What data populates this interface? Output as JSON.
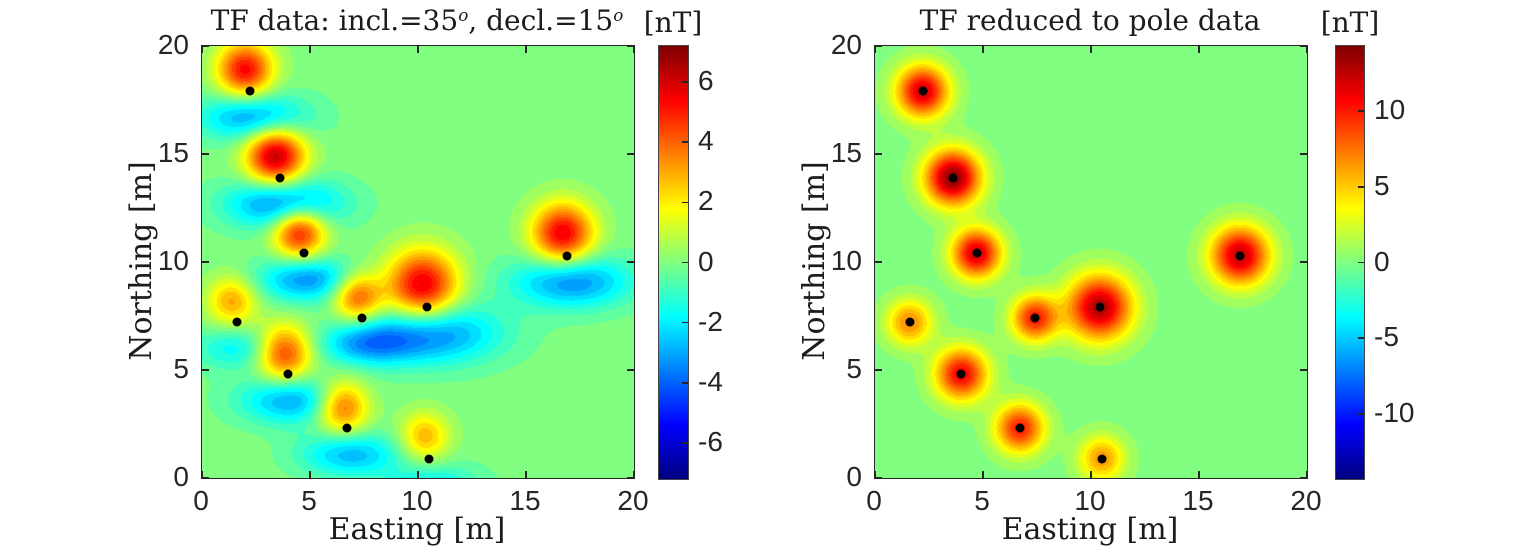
{
  "chart_data": [
    {
      "type": "heatmap",
      "title": {
        "pre": "TF data: incl.=35",
        "sup1": "o",
        "mid": ", decl.=15",
        "sup2": "o"
      },
      "xlabel": "Easting [m]",
      "ylabel": "Northing [m]",
      "xlim": [
        0,
        20
      ],
      "ylim": [
        0,
        20
      ],
      "xticks": [
        0,
        5,
        10,
        15,
        20
      ],
      "yticks": [
        0,
        5,
        10,
        15,
        20
      ],
      "colormap": "jet",
      "grid": false,
      "levels_step": 0.45,
      "marker": "black-dot",
      "colorbar": {
        "label": "[nT]",
        "ticks": [
          6,
          4,
          2,
          0,
          -2,
          -4,
          -6
        ],
        "clim": [
          -7.2,
          7.2
        ]
      },
      "anomaly_model": {
        "kind": "dipolar-total-field",
        "pos_offset": [
          -0.2,
          1.0
        ],
        "neg_offset": [
          0.2,
          -1.2
        ],
        "neg_sigma_scale": [
          1.9,
          0.85
        ],
        "neg_amp_ratio": 0.62
      },
      "points": [
        {
          "x": 2.2,
          "y": 17.9,
          "amp": 5.4,
          "sigma": 0.9
        },
        {
          "x": 3.6,
          "y": 13.9,
          "amp": 6.4,
          "sigma": 0.95
        },
        {
          "x": 4.7,
          "y": 10.4,
          "amp": 5.4,
          "sigma": 0.85
        },
        {
          "x": 1.6,
          "y": 7.2,
          "amp": 3.1,
          "sigma": 0.8
        },
        {
          "x": 4.0,
          "y": 4.8,
          "amp": 5.0,
          "sigma": 0.9
        },
        {
          "x": 7.4,
          "y": 7.4,
          "amp": 4.4,
          "sigma": 0.8
        },
        {
          "x": 10.4,
          "y": 7.9,
          "amp": 5.9,
          "sigma": 1.15
        },
        {
          "x": 6.7,
          "y": 2.3,
          "amp": 4.5,
          "sigma": 0.85
        },
        {
          "x": 10.5,
          "y": 0.9,
          "amp": 2.9,
          "sigma": 0.8
        },
        {
          "x": 16.9,
          "y": 10.3,
          "amp": 5.7,
          "sigma": 1.0
        }
      ]
    },
    {
      "type": "heatmap",
      "title": {
        "pre": "TF reduced to pole data"
      },
      "xlabel": "Easting [m]",
      "ylabel": "Northing [m]",
      "xlim": [
        0,
        20
      ],
      "ylim": [
        0,
        20
      ],
      "xticks": [
        0,
        5,
        10,
        15,
        20
      ],
      "yticks": [
        0,
        5,
        10,
        15,
        20
      ],
      "colormap": "jet",
      "grid": false,
      "levels_step": 0.9,
      "marker": "black-dot",
      "colorbar": {
        "label": "[nT]",
        "ticks": [
          10,
          5,
          0,
          -5,
          -10
        ],
        "clim": [
          -14.3,
          14.3
        ]
      },
      "anomaly_model": {
        "kind": "monopole-rtp",
        "pos_offset": [
          0,
          0
        ]
      },
      "points": [
        {
          "x": 2.2,
          "y": 17.9,
          "amp": 12.0,
          "sigma": 0.85
        },
        {
          "x": 3.6,
          "y": 13.9,
          "amp": 14.0,
          "sigma": 0.9
        },
        {
          "x": 4.7,
          "y": 10.4,
          "amp": 12.0,
          "sigma": 0.8
        },
        {
          "x": 1.6,
          "y": 7.2,
          "amp": 7.0,
          "sigma": 0.75
        },
        {
          "x": 4.0,
          "y": 4.8,
          "amp": 11.0,
          "sigma": 0.85
        },
        {
          "x": 7.4,
          "y": 7.4,
          "amp": 10.0,
          "sigma": 0.75
        },
        {
          "x": 10.4,
          "y": 7.9,
          "amp": 13.0,
          "sigma": 1.05
        },
        {
          "x": 6.7,
          "y": 2.3,
          "amp": 10.0,
          "sigma": 0.8
        },
        {
          "x": 10.5,
          "y": 0.9,
          "amp": 6.5,
          "sigma": 0.75
        },
        {
          "x": 16.9,
          "y": 10.3,
          "amp": 12.5,
          "sigma": 0.95
        }
      ]
    }
  ]
}
